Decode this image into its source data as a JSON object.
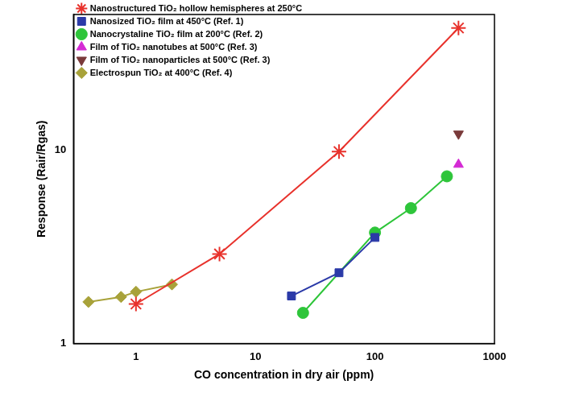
{
  "chart_data": {
    "type": "line",
    "x_label": "CO concentration in dry air (ppm)",
    "y_label": "Response (Rair/Rgas)",
    "log": true,
    "grid": false,
    "legend": "top-left",
    "xlim": [
      0.3,
      1000
    ],
    "xticks": [
      1,
      10,
      100,
      1000
    ],
    "ylim": [
      1,
      50
    ],
    "yticks": [
      1,
      10
    ],
    "series": [
      {
        "name": "Nanostructured TiO₂ hollow hemispheres at 250°C",
        "color": "#e8322c",
        "marker": "star",
        "line_style": "solid",
        "x": [
          1,
          5,
          50,
          500
        ],
        "values": [
          1.6,
          2.9,
          9.8,
          42.6
        ]
      },
      {
        "name": "Nanosized TiO₂ film at 450°C (Ref. 1)",
        "color": "#2b3aa8",
        "marker": "square",
        "line_style": "solid",
        "x": [
          20,
          50,
          100
        ],
        "values": [
          1.76,
          2.32,
          3.53
        ]
      },
      {
        "name": "Nanocrystaline TiO₂ film at 200°C (Ref. 2)",
        "color": "#2ec53a",
        "marker": "circle",
        "line_style": "solid",
        "x": [
          25,
          100,
          200,
          400
        ],
        "values": [
          1.44,
          3.74,
          5.0,
          7.3
        ]
      },
      {
        "name": "Film of TiO₂ nanotubes at 500°C (Ref. 3)",
        "color": "#d42ad4",
        "marker": "triangle",
        "line_style": "none",
        "x": [
          500
        ],
        "values": [
          8.4
        ]
      },
      {
        "name": "Film of TiO₂ nanoparticles at 500°C (Ref. 3)",
        "color": "#7a3a3a",
        "marker": "triangle-down",
        "line_style": "none",
        "x": [
          500
        ],
        "values": [
          12.1
        ]
      },
      {
        "name": "Electrospun TiO₂ at 400°C (Ref. 4)",
        "color": "#a8a23a",
        "marker": "diamond",
        "line_style": "solid",
        "x": [
          0.4,
          0.75,
          1,
          2
        ],
        "values": [
          1.64,
          1.74,
          1.85,
          2.02
        ]
      }
    ]
  }
}
